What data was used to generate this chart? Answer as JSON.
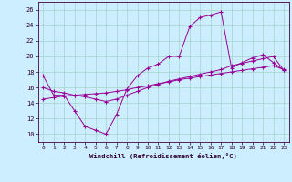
{
  "xlabel": "Windchill (Refroidissement éolien,°C)",
  "bg_color": "#cceeff",
  "line_color": "#990099",
  "xlim": [
    -0.5,
    23.5
  ],
  "ylim": [
    9,
    27
  ],
  "yticks": [
    10,
    12,
    14,
    16,
    18,
    20,
    22,
    24,
    26
  ],
  "xticks": [
    0,
    1,
    2,
    3,
    4,
    5,
    6,
    7,
    8,
    9,
    10,
    11,
    12,
    13,
    14,
    15,
    16,
    17,
    18,
    19,
    20,
    21,
    22,
    23
  ],
  "line1_x": [
    0,
    1,
    2,
    3,
    4,
    5,
    6,
    7,
    8,
    9,
    10,
    11,
    12,
    13,
    14,
    15,
    16,
    17,
    18,
    19,
    20,
    21,
    22,
    23
  ],
  "line1_y": [
    17.5,
    15.0,
    15.0,
    13.0,
    11.0,
    10.5,
    10.0,
    12.5,
    15.8,
    17.5,
    18.5,
    19.0,
    20.0,
    20.0,
    23.8,
    25.0,
    25.3,
    25.7,
    18.5,
    19.2,
    19.8,
    20.2,
    19.2,
    18.2
  ],
  "line2_x": [
    0,
    1,
    2,
    3,
    4,
    5,
    6,
    7,
    8,
    9,
    10,
    11,
    12,
    13,
    14,
    15,
    16,
    17,
    18,
    19,
    20,
    21,
    22,
    23
  ],
  "line2_y": [
    16.0,
    15.5,
    15.3,
    15.0,
    14.8,
    14.5,
    14.2,
    14.5,
    15.0,
    15.5,
    16.0,
    16.4,
    16.8,
    17.1,
    17.4,
    17.7,
    18.0,
    18.3,
    18.8,
    19.1,
    19.4,
    19.7,
    20.0,
    18.2
  ],
  "line3_x": [
    0,
    1,
    2,
    3,
    4,
    5,
    6,
    7,
    8,
    9,
    10,
    11,
    12,
    13,
    14,
    15,
    16,
    17,
    18,
    19,
    20,
    21,
    22,
    23
  ],
  "line3_y": [
    14.5,
    14.7,
    14.9,
    15.0,
    15.1,
    15.2,
    15.3,
    15.5,
    15.7,
    16.0,
    16.2,
    16.5,
    16.7,
    17.0,
    17.2,
    17.4,
    17.6,
    17.8,
    18.0,
    18.2,
    18.4,
    18.6,
    18.8,
    18.3
  ]
}
